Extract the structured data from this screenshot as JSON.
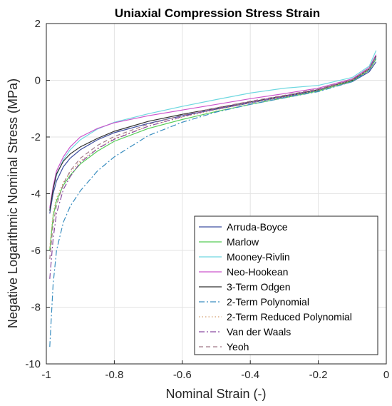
{
  "chart_data": {
    "type": "line",
    "title": "Uniaxial Compression Stress Strain",
    "xlabel": "Nominal Strain (-)",
    "ylabel": "Negative Logarithmic Nominal Stress (MPa)",
    "xlim": [
      -1,
      0
    ],
    "ylim": [
      -10,
      2
    ],
    "xticks": [
      -1,
      -0.8,
      -0.6,
      -0.4,
      -0.2,
      0
    ],
    "xtick_labels": [
      "-1",
      "-0.8",
      "-0.6",
      "-0.4",
      "-0.2",
      "0"
    ],
    "yticks": [
      2,
      0,
      -2,
      -4,
      -6,
      -8,
      -10
    ],
    "ytick_labels": [
      "2",
      "0",
      "-2",
      "-4",
      "-6",
      "-8",
      "-10"
    ],
    "grid": true,
    "legend_position": "bottom-right",
    "series": [
      {
        "name": "Arruda-Boyce",
        "color": "#3f4fa0",
        "dash": "solid",
        "x": [
          -0.99,
          -0.98,
          -0.97,
          -0.95,
          -0.93,
          -0.9,
          -0.85,
          -0.8,
          -0.7,
          -0.6,
          -0.5,
          -0.4,
          -0.3,
          -0.2,
          -0.1,
          -0.05,
          -0.03
        ],
        "y": [
          -4.7,
          -4.0,
          -3.55,
          -3.05,
          -2.75,
          -2.45,
          -2.1,
          -1.85,
          -1.52,
          -1.25,
          -1.02,
          -0.8,
          -0.58,
          -0.36,
          -0.05,
          0.3,
          0.65
        ]
      },
      {
        "name": "Marlow",
        "color": "#55cc55",
        "dash": "solid",
        "x": [
          -0.99,
          -0.98,
          -0.97,
          -0.95,
          -0.93,
          -0.9,
          -0.85,
          -0.8,
          -0.7,
          -0.6,
          -0.5,
          -0.4,
          -0.3,
          -0.2,
          -0.1,
          -0.05,
          -0.03
        ],
        "y": [
          -6.0,
          -4.8,
          -4.25,
          -3.7,
          -3.35,
          -2.95,
          -2.5,
          -2.15,
          -1.7,
          -1.38,
          -1.1,
          -0.85,
          -0.62,
          -0.38,
          -0.02,
          0.35,
          0.75
        ]
      },
      {
        "name": "Mooney-Rivlin",
        "color": "#6fd8e0",
        "dash": "solid",
        "x": [
          -0.99,
          -0.98,
          -0.97,
          -0.95,
          -0.93,
          -0.9,
          -0.85,
          -0.8,
          -0.7,
          -0.6,
          -0.5,
          -0.4,
          -0.3,
          -0.2,
          -0.1,
          -0.05,
          -0.03
        ],
        "y": [
          -4.6,
          -3.85,
          -3.35,
          -2.8,
          -2.45,
          -2.1,
          -1.72,
          -1.48,
          -1.18,
          -0.92,
          -0.68,
          -0.45,
          -0.28,
          -0.18,
          0.1,
          0.5,
          1.05
        ]
      },
      {
        "name": "Neo-Hookean",
        "color": "#cc55cc",
        "dash": "solid",
        "x": [
          -0.99,
          -0.98,
          -0.97,
          -0.95,
          -0.93,
          -0.9,
          -0.85,
          -0.8,
          -0.7,
          -0.6,
          -0.5,
          -0.4,
          -0.3,
          -0.2,
          -0.1,
          -0.05,
          -0.03
        ],
        "y": [
          -4.5,
          -3.75,
          -3.2,
          -2.7,
          -2.35,
          -2.0,
          -1.7,
          -1.5,
          -1.25,
          -1.05,
          -0.85,
          -0.65,
          -0.47,
          -0.28,
          0.05,
          0.45,
          0.9
        ]
      },
      {
        "name": "3-Term Odgen",
        "color": "#303030",
        "dash": "solid",
        "x": [
          -0.99,
          -0.98,
          -0.97,
          -0.95,
          -0.93,
          -0.9,
          -0.85,
          -0.8,
          -0.7,
          -0.6,
          -0.5,
          -0.4,
          -0.3,
          -0.2,
          -0.1,
          -0.05,
          -0.03
        ],
        "y": [
          -4.6,
          -3.85,
          -3.3,
          -2.85,
          -2.6,
          -2.35,
          -2.05,
          -1.8,
          -1.45,
          -1.2,
          -0.98,
          -0.76,
          -0.55,
          -0.33,
          0.0,
          0.4,
          0.85
        ]
      },
      {
        "name": "2-Term Polynomial",
        "color": "#3a8ec0",
        "dash": "dashdot",
        "x": [
          -0.99,
          -0.98,
          -0.97,
          -0.95,
          -0.93,
          -0.9,
          -0.85,
          -0.8,
          -0.7,
          -0.6,
          -0.5,
          -0.4,
          -0.3,
          -0.2,
          -0.1,
          -0.05,
          -0.03
        ],
        "y": [
          -9.4,
          -7.2,
          -6.0,
          -5.0,
          -4.45,
          -3.9,
          -3.2,
          -2.7,
          -1.95,
          -1.48,
          -1.12,
          -0.85,
          -0.62,
          -0.4,
          -0.05,
          0.35,
          0.8
        ]
      },
      {
        "name": "2-Term Reduced Polynomial",
        "color": "#d4a070",
        "dash": "dotted",
        "x": [
          -0.99,
          -0.98,
          -0.97,
          -0.95,
          -0.93,
          -0.9,
          -0.85,
          -0.8,
          -0.7,
          -0.6,
          -0.5,
          -0.4,
          -0.3,
          -0.2,
          -0.1,
          -0.05,
          -0.03
        ],
        "y": [
          -5.9,
          -4.7,
          -4.15,
          -3.6,
          -3.25,
          -2.85,
          -2.4,
          -2.05,
          -1.62,
          -1.3,
          -1.04,
          -0.8,
          -0.58,
          -0.35,
          0.0,
          0.38,
          0.8
        ]
      },
      {
        "name": "Van der Waals",
        "color": "#8a4aa0",
        "dash": "dashdot",
        "x": [
          -0.99,
          -0.98,
          -0.97,
          -0.95,
          -0.93,
          -0.9,
          -0.85,
          -0.8,
          -0.7,
          -0.6,
          -0.5,
          -0.4,
          -0.3,
          -0.2,
          -0.1,
          -0.05,
          -0.03
        ],
        "y": [
          -7.0,
          -5.6,
          -4.7,
          -3.85,
          -3.4,
          -2.9,
          -2.42,
          -2.08,
          -1.62,
          -1.28,
          -1.0,
          -0.77,
          -0.55,
          -0.33,
          0.02,
          0.42,
          0.88
        ]
      },
      {
        "name": "Yeoh",
        "color": "#a07888",
        "dash": "dashed",
        "x": [
          -0.99,
          -0.98,
          -0.97,
          -0.95,
          -0.93,
          -0.9,
          -0.85,
          -0.8,
          -0.7,
          -0.6,
          -0.5,
          -0.4,
          -0.3,
          -0.2,
          -0.1,
          -0.05,
          -0.03
        ],
        "y": [
          -6.3,
          -5.1,
          -4.4,
          -3.65,
          -3.2,
          -2.75,
          -2.3,
          -1.98,
          -1.55,
          -1.23,
          -0.97,
          -0.74,
          -0.53,
          -0.31,
          0.03,
          0.42,
          0.85
        ]
      }
    ]
  }
}
